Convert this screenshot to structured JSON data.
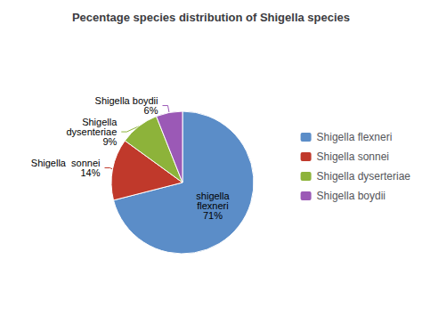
{
  "chart_data": {
    "type": "pie",
    "title": "Pecentage species distribution of Shigella species",
    "categories": [
      "Shigella flexneri",
      "Shigella sonnei",
      "Shigella dyserteriae",
      "Shigella boydii"
    ],
    "slice_labels": [
      "shigella\nflexneri",
      "Shigella  sonnei",
      "Shigella\ndysenteriae",
      "Shigella boydii"
    ],
    "values": [
      71,
      14,
      9,
      6
    ],
    "value_labels": [
      "71%",
      "14%",
      "9%",
      "6%"
    ],
    "colors": [
      "#5B8DC8",
      "#C0392B",
      "#8DB33A",
      "#9B59B6"
    ],
    "data_labels": true,
    "legend": "right"
  }
}
